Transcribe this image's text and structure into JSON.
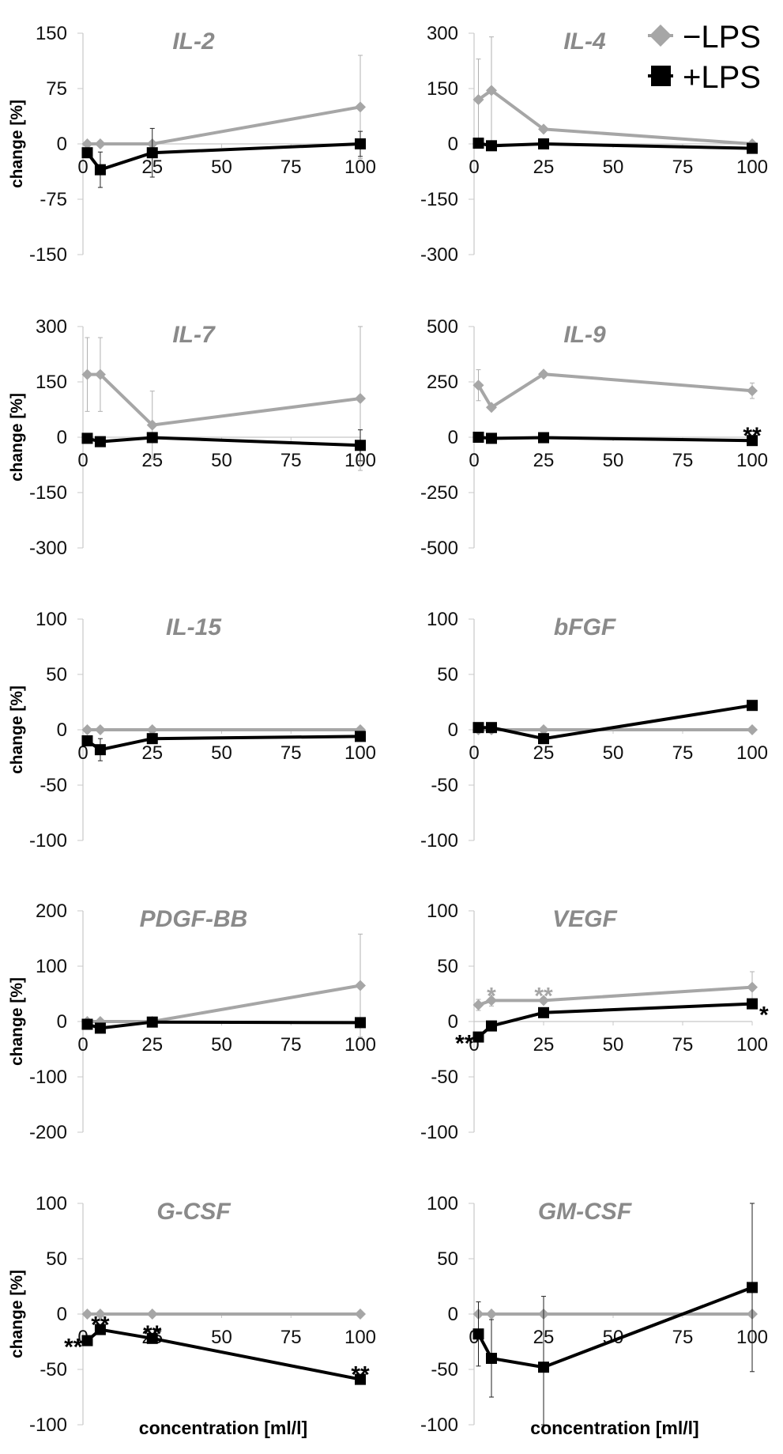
{
  "chart_data": {
    "type": "line",
    "x": [
      1.5625,
      6.25,
      25,
      100
    ],
    "xticks": [
      "0",
      "25",
      "50",
      "75",
      "100"
    ],
    "xtick_values": [
      0,
      25,
      50,
      75,
      100
    ],
    "xlim": [
      0,
      100
    ],
    "xlabel": "concentration [ml/l]",
    "ylabel": "change [%]",
    "legend": {
      "position": "top-right",
      "entries": [
        {
          "name": "−LPS",
          "marker": "diamond",
          "color": "#a6a6a6"
        },
        {
          "name": "+LPS",
          "marker": "square",
          "color": "#000000"
        }
      ]
    },
    "panels": [
      {
        "title": "IL-2",
        "ylim": [
          -150,
          150
        ],
        "yticks": [
          150,
          75,
          0,
          -75,
          -150
        ],
        "series": [
          {
            "name": "−LPS",
            "values": [
              0,
              0,
              0,
              50
            ],
            "errors": [
              0,
              0,
              0,
              70
            ],
            "stars": [
              "",
              "",
              "",
              ""
            ]
          },
          {
            "name": "+LPS",
            "values": [
              -12,
              -35,
              -12,
              0
            ],
            "errors": [
              0,
              24,
              33,
              17
            ],
            "stars": [
              "",
              "",
              "",
              ""
            ]
          }
        ]
      },
      {
        "title": "IL-4",
        "ylim": [
          -300,
          300
        ],
        "yticks": [
          300,
          150,
          0,
          -150,
          -300
        ],
        "series": [
          {
            "name": "−LPS",
            "values": [
              120,
              145,
              40,
              0
            ],
            "errors": [
              110,
              145,
              0,
              0
            ],
            "stars": [
              "",
              "",
              "",
              ""
            ]
          },
          {
            "name": "+LPS",
            "values": [
              2,
              -5,
              0,
              -12
            ],
            "errors": [
              0,
              0,
              0,
              0
            ],
            "stars": [
              "",
              "",
              "",
              ""
            ]
          }
        ]
      },
      {
        "title": "IL-7",
        "ylim": [
          -300,
          300
        ],
        "yticks": [
          300,
          150,
          0,
          -150,
          -300
        ],
        "series": [
          {
            "name": "−LPS",
            "values": [
              170,
              170,
              33,
              105
            ],
            "errors": [
              100,
              100,
              92,
              195
            ],
            "stars": [
              "",
              "",
              "",
              ""
            ]
          },
          {
            "name": "+LPS",
            "values": [
              -3,
              -12,
              -1,
              -22
            ],
            "errors": [
              0,
              0,
              0,
              42
            ],
            "stars": [
              "",
              "",
              "",
              ""
            ]
          }
        ]
      },
      {
        "title": "IL-9",
        "ylim": [
          -500,
          500
        ],
        "yticks": [
          500,
          250,
          0,
          -250,
          -500
        ],
        "series": [
          {
            "name": "−LPS",
            "values": [
              235,
              135,
              285,
              210
            ],
            "errors": [
              70,
              0,
              0,
              35
            ],
            "stars": [
              "",
              "",
              "",
              ""
            ]
          },
          {
            "name": "+LPS",
            "values": [
              0,
              -5,
              -2,
              -15
            ],
            "errors": [
              0,
              0,
              0,
              0
            ],
            "stars": [
              "",
              "",
              "",
              "**"
            ]
          }
        ]
      },
      {
        "title": "IL-15",
        "ylim": [
          -100,
          100
        ],
        "yticks": [
          100,
          50,
          0,
          -50,
          -100
        ],
        "series": [
          {
            "name": "−LPS",
            "values": [
              0,
              0,
              0,
              0
            ],
            "errors": [
              0,
              0,
              0,
              0
            ],
            "stars": [
              "",
              "",
              "",
              ""
            ]
          },
          {
            "name": "+LPS",
            "values": [
              -10,
              -18,
              -8,
              -6
            ],
            "errors": [
              0,
              10,
              0,
              0
            ],
            "stars": [
              "",
              "",
              "",
              ""
            ]
          }
        ]
      },
      {
        "title": "bFGF",
        "ylim": [
          -100,
          100
        ],
        "yticks": [
          100,
          50,
          0,
          -50,
          -100
        ],
        "series": [
          {
            "name": "−LPS",
            "values": [
              0,
              0,
              0,
              0
            ],
            "errors": [
              0,
              0,
              0,
              0
            ],
            "stars": [
              "",
              "",
              "",
              ""
            ]
          },
          {
            "name": "+LPS",
            "values": [
              2,
              2,
              -8,
              22
            ],
            "errors": [
              0,
              0,
              0,
              0
            ],
            "stars": [
              "",
              "",
              "",
              ""
            ]
          }
        ]
      },
      {
        "title": "PDGF-BB",
        "ylim": [
          -200,
          200
        ],
        "yticks": [
          200,
          100,
          0,
          -100,
          -200
        ],
        "series": [
          {
            "name": "−LPS",
            "values": [
              0,
              0,
              0,
              65
            ],
            "errors": [
              0,
              0,
              0,
              93
            ],
            "stars": [
              "",
              "",
              "",
              ""
            ]
          },
          {
            "name": "+LPS",
            "values": [
              -5,
              -12,
              -1,
              -2
            ],
            "errors": [
              0,
              0,
              0,
              0
            ],
            "stars": [
              "",
              "",
              "",
              ""
            ]
          }
        ]
      },
      {
        "title": "VEGF",
        "ylim": [
          -100,
          100
        ],
        "yticks": [
          100,
          50,
          0,
          -50,
          -100
        ],
        "series": [
          {
            "name": "−LPS",
            "values": [
              15,
              19,
              19,
              31
            ],
            "errors": [
              5,
              5,
              0,
              14
            ],
            "stars": [
              "",
              "*",
              "**",
              ""
            ]
          },
          {
            "name": "+LPS",
            "values": [
              -14,
              -4,
              8,
              16
            ],
            "errors": [
              0,
              0,
              0,
              0
            ],
            "stars": [
              "**",
              "",
              "",
              "*"
            ]
          }
        ]
      },
      {
        "title": "G-CSF",
        "ylim": [
          -100,
          100
        ],
        "yticks": [
          100,
          50,
          0,
          -50,
          -100
        ],
        "series": [
          {
            "name": "−LPS",
            "values": [
              0,
              0,
              0,
              0
            ],
            "errors": [
              0,
              0,
              0,
              0
            ],
            "stars": [
              "",
              "",
              "",
              ""
            ]
          },
          {
            "name": "+LPS",
            "values": [
              -24,
              -14,
              -22,
              -59
            ],
            "errors": [
              0,
              0,
              0,
              0
            ],
            "stars": [
              "**",
              "**",
              "**",
              "**"
            ]
          }
        ]
      },
      {
        "title": "GM-CSF",
        "ylim": [
          -100,
          100
        ],
        "yticks": [
          100,
          50,
          0,
          -50,
          -100
        ],
        "series": [
          {
            "name": "−LPS",
            "values": [
              0,
              0,
              0,
              0
            ],
            "errors": [
              0,
              0,
              0,
              0
            ],
            "stars": [
              "",
              "",
              "",
              ""
            ]
          },
          {
            "name": "+LPS",
            "values": [
              -18,
              -40,
              -48,
              24
            ],
            "errors": [
              29,
              35,
              64,
              76
            ],
            "stars": [
              "",
              "",
              "",
              ""
            ]
          }
        ]
      }
    ]
  }
}
